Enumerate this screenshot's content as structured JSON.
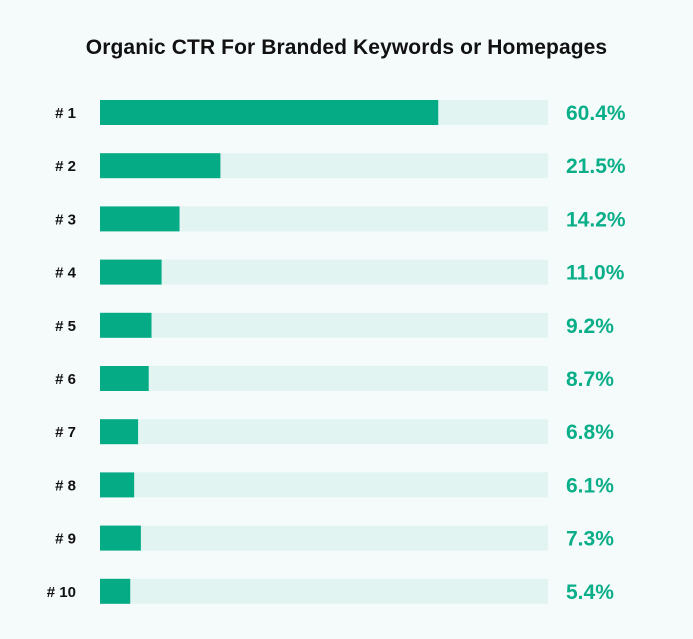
{
  "chart_data": {
    "type": "bar",
    "orientation": "horizontal",
    "title": "Organic CTR For Branded Keywords or Homepages",
    "categories": [
      "# 1",
      "# 2",
      "# 3",
      "# 4",
      "# 5",
      "# 6",
      "# 7",
      "# 8",
      "# 9",
      "# 10"
    ],
    "values": [
      60.4,
      21.5,
      14.2,
      11.0,
      9.2,
      8.7,
      6.8,
      6.1,
      7.3,
      5.4
    ],
    "value_labels": [
      "60.4%",
      "21.5%",
      "14.2%",
      "11.0%",
      "9.2%",
      "8.7%",
      "6.8%",
      "6.1%",
      "7.3%",
      "5.4%"
    ],
    "xlim": [
      0,
      80
    ],
    "grid": false,
    "legend": "none"
  },
  "colors": {
    "bar_fill": "#05ab85",
    "bar_track": "#e1f4f1",
    "value_text": "#0aae88",
    "label_text": "#111111",
    "background": "#f5fbfb"
  }
}
